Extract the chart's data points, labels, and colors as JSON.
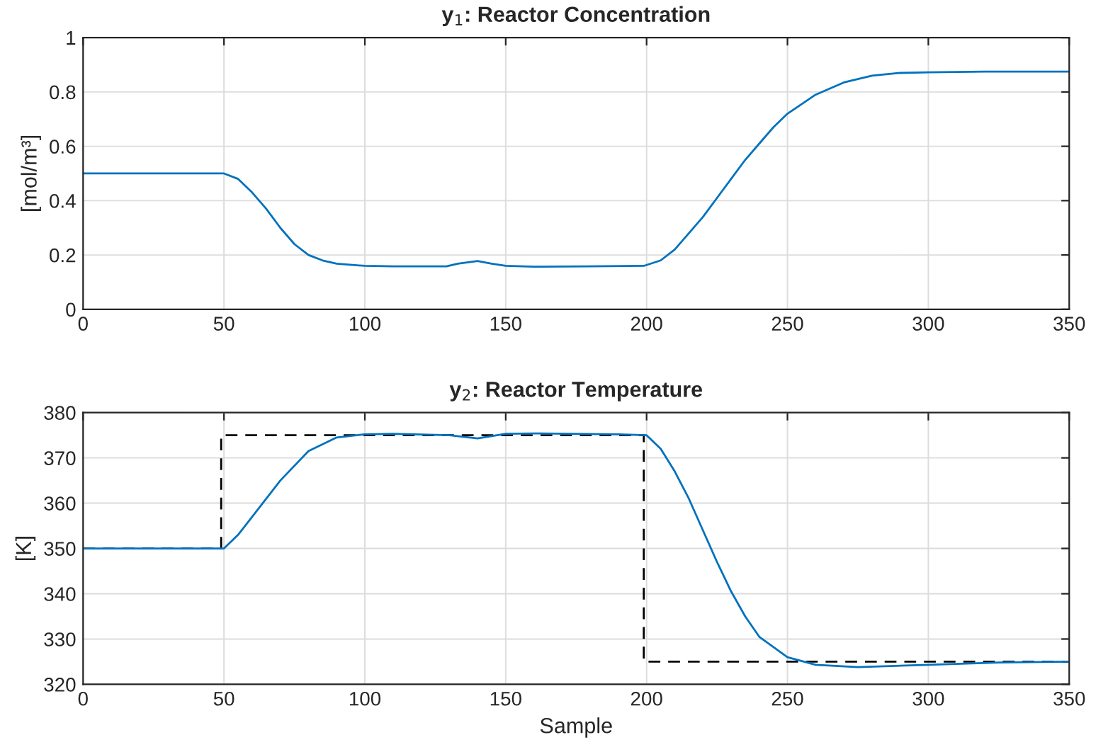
{
  "chart_data": [
    {
      "type": "line",
      "title": "y$_{1}$: Reactor Concentration",
      "ylabel": "[mol/m³]",
      "xlim": [
        0,
        350
      ],
      "xticks": [
        0,
        50,
        100,
        150,
        200,
        250,
        300,
        350
      ],
      "ylim": [
        0,
        1
      ],
      "yticks": [
        0,
        0.2,
        0.4,
        0.6,
        0.8,
        1
      ],
      "grid": true,
      "series": [
        {
          "color": "#0072bd",
          "line_style": "solid",
          "x": [
            0,
            50,
            55,
            60,
            65,
            70,
            75,
            80,
            85,
            90,
            100,
            110,
            129,
            133,
            140,
            145,
            150,
            160,
            180,
            199,
            205,
            210,
            215,
            220,
            225,
            230,
            235,
            240,
            245,
            250,
            260,
            270,
            280,
            290,
            300,
            320,
            350
          ],
          "values": [
            0.5,
            0.5,
            0.48,
            0.43,
            0.37,
            0.3,
            0.24,
            0.2,
            0.18,
            0.168,
            0.16,
            0.158,
            0.158,
            0.168,
            0.178,
            0.168,
            0.16,
            0.157,
            0.158,
            0.16,
            0.18,
            0.22,
            0.28,
            0.34,
            0.41,
            0.48,
            0.55,
            0.61,
            0.67,
            0.72,
            0.79,
            0.835,
            0.86,
            0.87,
            0.872,
            0.875,
            0.875
          ]
        }
      ]
    },
    {
      "type": "line",
      "title": "y$_{2}$: Reactor Temperature",
      "xlabel": "Sample",
      "ylabel": "[K]",
      "xlim": [
        0,
        350
      ],
      "xticks": [
        0,
        50,
        100,
        150,
        200,
        250,
        300,
        350
      ],
      "ylim": [
        320,
        380
      ],
      "yticks": [
        320,
        330,
        340,
        350,
        360,
        370,
        380
      ],
      "grid": true,
      "series": [
        {
          "color": "#000000",
          "line_style": "dashed",
          "x": [
            0,
            49,
            49,
            199,
            199,
            350
          ],
          "values": [
            350,
            350,
            375,
            375,
            325,
            325
          ]
        },
        {
          "color": "#0072bd",
          "line_style": "solid",
          "x": [
            0,
            50,
            55,
            60,
            70,
            80,
            90,
            100,
            110,
            130,
            140,
            150,
            160,
            190,
            200,
            205,
            210,
            215,
            220,
            225,
            230,
            235,
            240,
            250,
            260,
            275,
            300,
            325,
            350
          ],
          "values": [
            350,
            350,
            353,
            357,
            365,
            371.5,
            374.5,
            375.2,
            375.3,
            375,
            374.3,
            375.3,
            375.4,
            375.2,
            375,
            372,
            367,
            361,
            354,
            347,
            340.5,
            335,
            330.5,
            326,
            324.3,
            323.8,
            324.3,
            324.8,
            325
          ]
        }
      ]
    }
  ]
}
